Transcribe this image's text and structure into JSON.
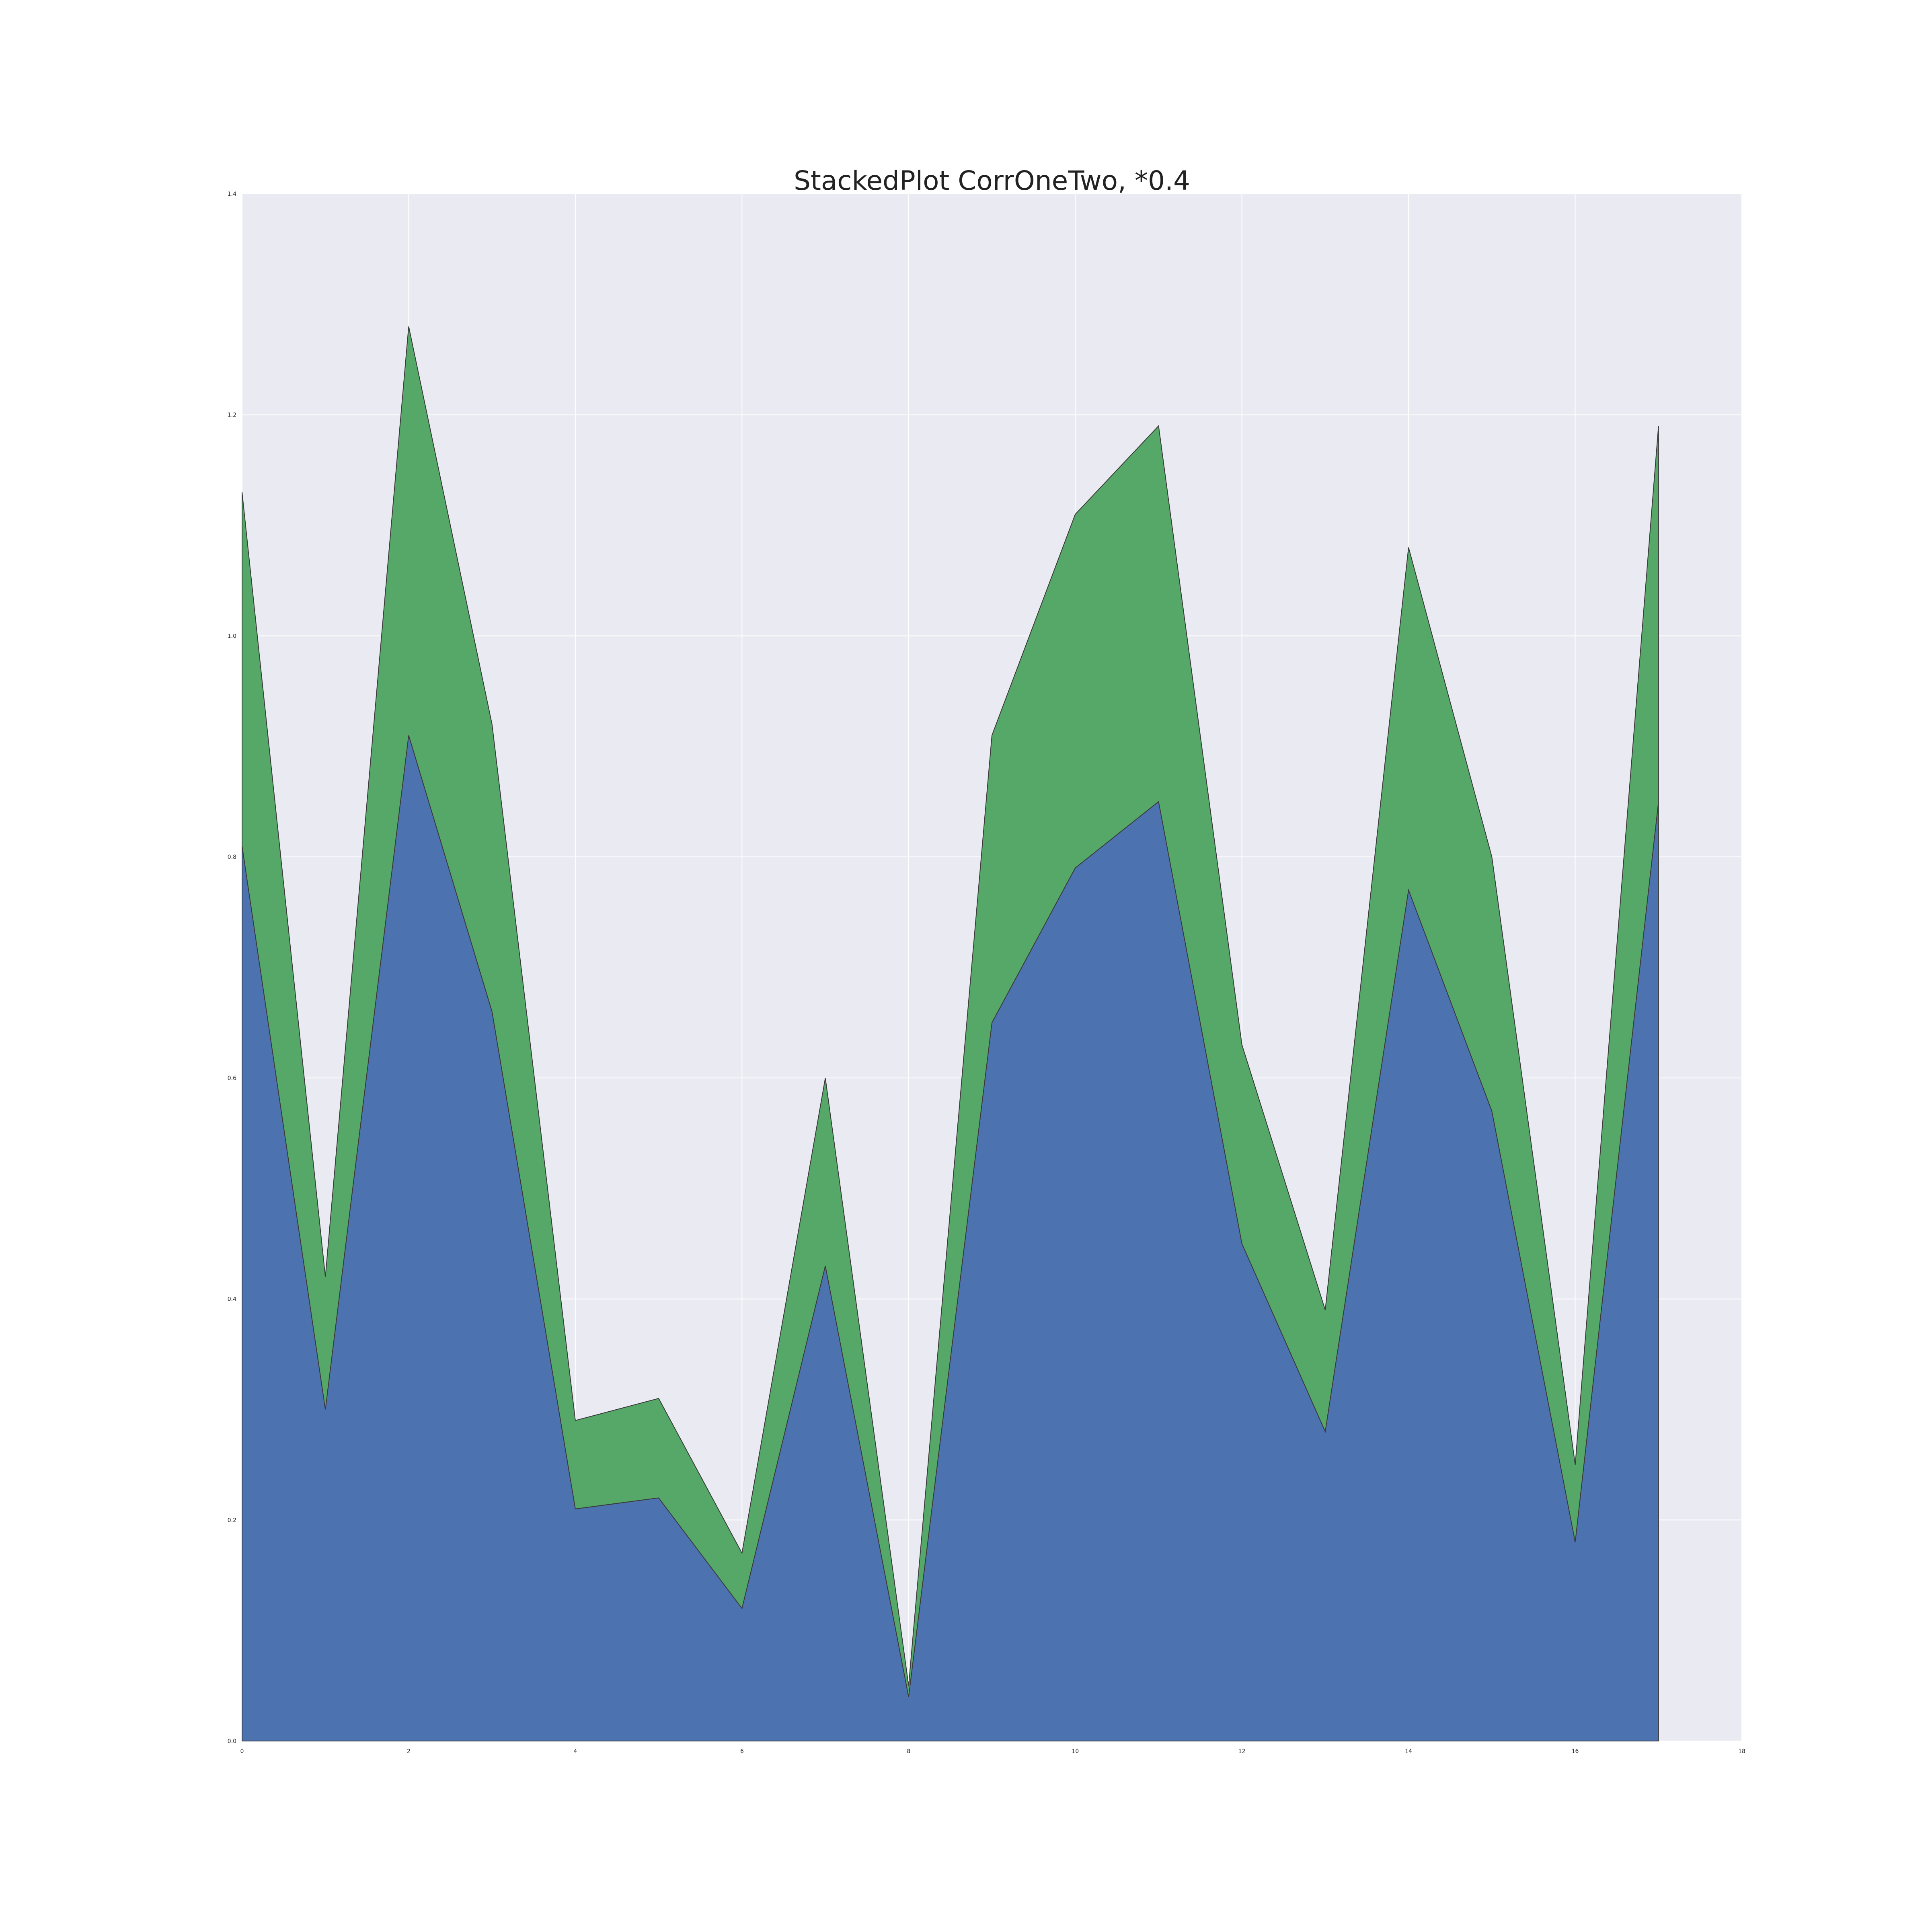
{
  "chart_data": {
    "type": "area",
    "stacked": true,
    "title": "StackedPlot CorrOneTwo, *0.4",
    "xlabel": "",
    "ylabel": "",
    "xlim": [
      0,
      18
    ],
    "ylim": [
      0,
      1.4
    ],
    "x_ticks": [
      0,
      2,
      4,
      6,
      8,
      10,
      12,
      14,
      16,
      18
    ],
    "y_ticks": [
      "0.0",
      "0.2",
      "0.4",
      "0.6",
      "0.8",
      "1.0",
      "1.2",
      "1.4"
    ],
    "grid": true,
    "legend": false,
    "x": [
      0,
      1,
      2,
      3,
      4,
      5,
      6,
      7,
      8,
      9,
      10,
      11,
      12,
      13,
      14,
      15,
      16,
      17
    ],
    "series": [
      {
        "color": "#4c72b0",
        "values": [
          0.81,
          0.3,
          0.91,
          0.66,
          0.21,
          0.22,
          0.12,
          0.43,
          0.04,
          0.65,
          0.79,
          0.85,
          0.45,
          0.28,
          0.77,
          0.57,
          0.18,
          0.85
        ]
      },
      {
        "color": "#55a868",
        "values": [
          0.32,
          0.12,
          0.37,
          0.26,
          0.08,
          0.09,
          0.05,
          0.17,
          0.01,
          0.26,
          0.32,
          0.34,
          0.18,
          0.11,
          0.31,
          0.23,
          0.07,
          0.34
        ]
      }
    ],
    "colors": {
      "background": "#eaeaf2",
      "grid": "#ffffff"
    }
  }
}
